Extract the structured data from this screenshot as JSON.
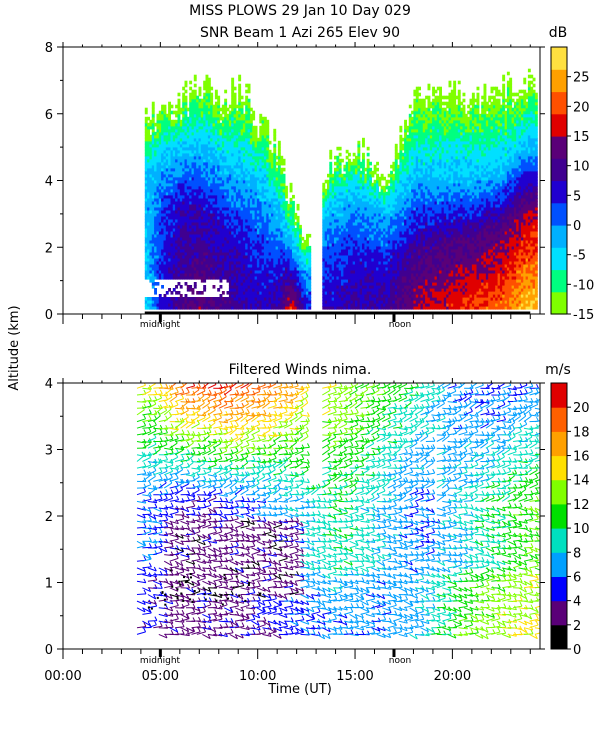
{
  "figure": {
    "title_line1": "MISS PLOWS  29 Jan 10 Day 029",
    "title_line2": "SNR Beam 1 Azi 265 Elev 90",
    "shared_ylabel": "Altitude (km)",
    "shared_xlabel": "Time (UT)",
    "time_ticks": [
      "00:00",
      "05:00",
      "10:00",
      "15:00",
      "20:00"
    ],
    "markers": {
      "midnight": "midnight",
      "noon": "noon"
    }
  },
  "colors": {
    "snr_scale": [
      "#7fff00",
      "#00ff80",
      "#00e0ff",
      "#00b0ff",
      "#0050ff",
      "#2000d0",
      "#400090",
      "#5a0078",
      "#e00000",
      "#ff5000",
      "#ffa000",
      "#ffe040"
    ],
    "wind_scale": [
      "#000000",
      "#5a0078",
      "#0000ff",
      "#00a0ff",
      "#00e0c0",
      "#00e000",
      "#80ff00",
      "#ffe000",
      "#ffa000",
      "#ff6000",
      "#e00000"
    ]
  },
  "chart_data": [
    {
      "type": "heatmap",
      "title": "SNR Beam 1 Azi 265 Elev 90",
      "xlabel": "",
      "ylabel": "Altitude (km)",
      "xlim_hours": [
        0,
        24.5
      ],
      "ylim_km": [
        0,
        8
      ],
      "yticks": [
        "0",
        "2",
        "4",
        "6",
        "8"
      ],
      "colorbar": {
        "unit": "dB",
        "ticks": [
          "25",
          "20",
          "15",
          "10",
          "5",
          "0",
          "-5",
          "-10",
          "-15"
        ],
        "range": [
          -15,
          30
        ]
      },
      "markers": {
        "midnight_hour": 5.0,
        "noon_hour": 17.0
      },
      "columns": [
        {
          "t": 4.2,
          "top": 6.0,
          "mid": 4.0,
          "low": 2.5,
          "peak": -5
        },
        {
          "t": 5.0,
          "top": 6.2,
          "mid": 4.5,
          "low": 3.0,
          "peak": 5
        },
        {
          "t": 6.0,
          "top": 6.5,
          "mid": 4.8,
          "low": 3.2,
          "peak": 10
        },
        {
          "t": 7.0,
          "top": 6.8,
          "mid": 5.0,
          "low": 3.0,
          "peak": 12
        },
        {
          "t": 8.0,
          "top": 6.5,
          "mid": 4.5,
          "low": 2.6,
          "peak": 10
        },
        {
          "t": 9.0,
          "top": 6.8,
          "mid": 4.2,
          "low": 2.4,
          "peak": 8
        },
        {
          "t": 10.0,
          "top": 6.0,
          "mid": 3.8,
          "low": 2.0,
          "peak": 6
        },
        {
          "t": 11.0,
          "top": 5.0,
          "mid": 3.0,
          "low": 1.2,
          "peak": 8
        },
        {
          "t": 11.7,
          "top": 3.5,
          "mid": 2.0,
          "low": 0.8,
          "peak": 18
        },
        {
          "t": 12.5,
          "top": 2.2,
          "mid": 1.2,
          "low": 0.4,
          "peak": 5
        },
        {
          "t": 13.5,
          "top": 4.5,
          "mid": 3.0,
          "low": 1.5,
          "peak": 6
        },
        {
          "t": 15.0,
          "top": 5.0,
          "mid": 3.5,
          "low": 1.8,
          "peak": 8
        },
        {
          "t": 16.5,
          "top": 4.2,
          "mid": 3.0,
          "low": 1.5,
          "peak": 8
        },
        {
          "t": 18.0,
          "top": 6.5,
          "mid": 4.0,
          "low": 2.0,
          "peak": 14
        },
        {
          "t": 19.5,
          "top": 6.8,
          "mid": 4.0,
          "low": 2.2,
          "peak": 16
        },
        {
          "t": 21.0,
          "top": 6.5,
          "mid": 4.0,
          "low": 2.2,
          "peak": 18
        },
        {
          "t": 22.5,
          "top": 6.8,
          "mid": 4.2,
          "low": 2.5,
          "peak": 20
        },
        {
          "t": 23.8,
          "top": 7.0,
          "mid": 5.0,
          "low": 3.0,
          "peak": 25
        }
      ]
    },
    {
      "type": "scatter",
      "title": "Filtered Winds nima.",
      "xlabel": "Time (UT)",
      "ylabel": "Altitude (km)",
      "xlim_hours": [
        0,
        24.5
      ],
      "ylim_km": [
        0,
        4
      ],
      "yticks": [
        "0",
        "1",
        "2",
        "3",
        "4"
      ],
      "xticks": [
        "00:00",
        "05:00",
        "10:00",
        "15:00",
        "20:00"
      ],
      "colorbar": {
        "unit": "m/s",
        "ticks": [
          "20",
          "18",
          "16",
          "14",
          "12",
          "10",
          "8",
          "6",
          "4",
          "2",
          "0"
        ],
        "range": [
          0,
          22
        ]
      },
      "markers": {
        "midnight_hour": 5.0,
        "noon_hour": 17.0
      },
      "wind_regime": [
        {
          "t": 4.0,
          "speed_low": 4,
          "speed_mid": 6,
          "speed_high": 14
        },
        {
          "t": 6.0,
          "speed_low": 3,
          "speed_mid": 4,
          "speed_high": 20
        },
        {
          "t": 8.0,
          "speed_low": 3,
          "speed_mid": 5,
          "speed_high": 21
        },
        {
          "t": 10.0,
          "speed_low": 4,
          "speed_mid": 6,
          "speed_high": 20
        },
        {
          "t": 12.0,
          "speed_low": 5,
          "speed_mid": 8,
          "speed_high": 16
        },
        {
          "t": 14.0,
          "speed_low": 6,
          "speed_mid": 10,
          "speed_high": 14
        },
        {
          "t": 16.0,
          "speed_low": 6,
          "speed_mid": 8,
          "speed_high": 12
        },
        {
          "t": 18.0,
          "speed_low": 8,
          "speed_mid": 6,
          "speed_high": 10
        },
        {
          "t": 20.0,
          "speed_low": 12,
          "speed_mid": 8,
          "speed_high": 6
        },
        {
          "t": 22.0,
          "speed_low": 14,
          "speed_mid": 10,
          "speed_high": 5
        },
        {
          "t": 23.8,
          "speed_low": 15,
          "speed_mid": 12,
          "speed_high": 6
        }
      ]
    }
  ]
}
